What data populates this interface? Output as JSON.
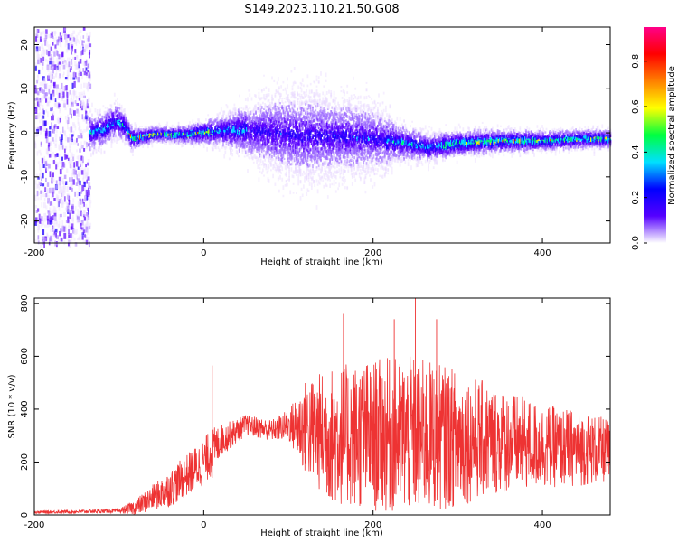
{
  "title": "S149.2023.110.21.50.G08",
  "chart_data": [
    {
      "type": "heatmap",
      "xlabel": "Height of straight line (km)",
      "ylabel": "Frequency (Hz)",
      "xlim": [
        -200,
        480
      ],
      "ylim": [
        -25,
        24
      ],
      "xticks": [
        -200,
        0,
        200,
        400
      ],
      "yticks": [
        -20,
        -10,
        0,
        10,
        20
      ],
      "colorbar": {
        "label": "Normalized spectral amplitude",
        "range": [
          0,
          0.95
        ],
        "ticks": [
          0.0,
          0.2,
          0.4,
          0.6,
          0.8
        ],
        "colormap": [
          "#ffffff",
          "#5500ff",
          "#0000ff",
          "#00e0ff",
          "#00ff40",
          "#ffff00",
          "#ff8000",
          "#ff0000",
          "#ff0088"
        ]
      },
      "center_freq_profile": {
        "x": [
          -140,
          -120,
          -105,
          -95,
          -85,
          -60,
          -20,
          0,
          40,
          100,
          160,
          200,
          220,
          240,
          265,
          300,
          350,
          400,
          440,
          480
        ],
        "y": [
          0,
          1,
          3,
          2,
          -1,
          0,
          0,
          0.5,
          1,
          0,
          -0.5,
          -1,
          -1.5,
          -2,
          -3,
          -2,
          -1.5,
          -1.5,
          -1,
          -1
        ]
      },
      "spread_profile": {
        "x": [
          -140,
          -100,
          -80,
          -40,
          0,
          40,
          80,
          120,
          160,
          200,
          230,
          280,
          350,
          420,
          480
        ],
        "halfwidth_hz": [
          4,
          4,
          2,
          1.5,
          2.5,
          5,
          9,
          10,
          9,
          8,
          4,
          3,
          2.5,
          2,
          2
        ]
      },
      "noise_region_x": [
        -200,
        -135
      ]
    },
    {
      "type": "line",
      "xlabel": "Height of straight line (km)",
      "ylabel": "SNR (10 * v/v)",
      "xlim": [
        -200,
        480
      ],
      "ylim": [
        0,
        820
      ],
      "xticks": [
        -200,
        0,
        200,
        400
      ],
      "yticks": [
        0,
        200,
        400,
        600,
        800
      ],
      "color": "#ee3333",
      "envelope": {
        "x": [
          -200,
          -100,
          -80,
          -40,
          0,
          10,
          20,
          50,
          80,
          100,
          120,
          150,
          200,
          250,
          300,
          350,
          400,
          450,
          480
        ],
        "mean": [
          10,
          15,
          30,
          100,
          200,
          240,
          280,
          340,
          320,
          340,
          330,
          300,
          300,
          300,
          290,
          280,
          260,
          250,
          240
        ],
        "amp": [
          5,
          8,
          30,
          70,
          90,
          90,
          60,
          40,
          40,
          60,
          180,
          260,
          290,
          300,
          260,
          200,
          160,
          140,
          120
        ]
      },
      "spikes": [
        {
          "x": 10,
          "y": 565
        },
        {
          "x": 165,
          "y": 760
        },
        {
          "x": 225,
          "y": 740
        },
        {
          "x": 250,
          "y": 820
        },
        {
          "x": 275,
          "y": 740
        }
      ]
    }
  ]
}
